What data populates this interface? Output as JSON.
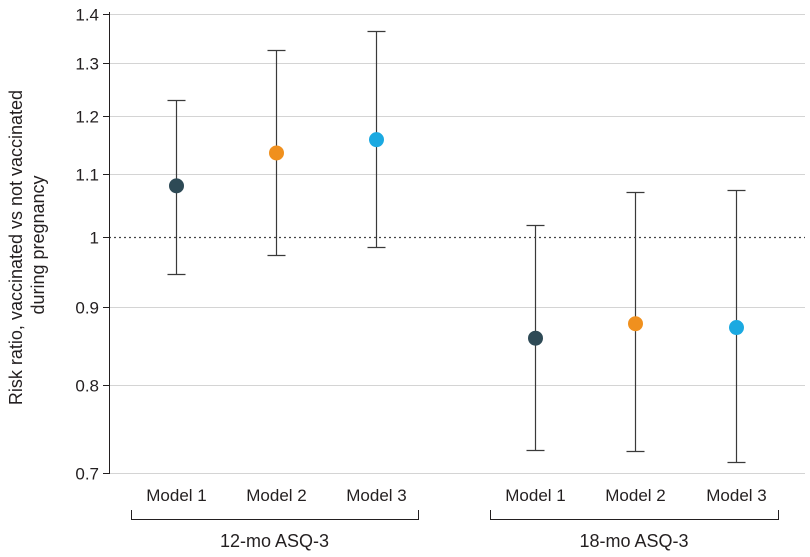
{
  "chart_data": {
    "type": "scatter",
    "subtype": "forest-plot-log-scale",
    "ylabel_lines": [
      "Risk ratio, vaccinated vs not vaccinated",
      "during pregnancy"
    ],
    "y_scale": "log",
    "ylim": [
      0.7,
      1.4
    ],
    "y_ticks": [
      {
        "value": 0.7,
        "label": "0.7"
      },
      {
        "value": 0.8,
        "label": "0.8"
      },
      {
        "value": 0.9,
        "label": "0.9"
      },
      {
        "value": 1.0,
        "label": "1"
      },
      {
        "value": 1.1,
        "label": "1.1"
      },
      {
        "value": 1.2,
        "label": "1.2"
      },
      {
        "value": 1.3,
        "label": "1.3"
      },
      {
        "value": 1.4,
        "label": "1.4"
      }
    ],
    "reference_line": 1.0,
    "grid": true,
    "model_colors": {
      "Model 1": "#2e4a56",
      "Model 2": "#f0901e",
      "Model 3": "#1ba9e1"
    },
    "groups": [
      {
        "label": "12-mo ASQ-3",
        "points": [
          {
            "model": "Model 1",
            "rr": 1.08,
            "lower": 0.945,
            "upper": 1.23
          },
          {
            "model": "Model 2",
            "rr": 1.135,
            "lower": 0.973,
            "upper": 1.325
          },
          {
            "model": "Model 3",
            "rr": 1.158,
            "lower": 0.984,
            "upper": 1.365
          }
        ]
      },
      {
        "label": "18-mo ASQ-3",
        "points": [
          {
            "model": "Model 1",
            "rr": 0.858,
            "lower": 0.725,
            "upper": 1.018
          },
          {
            "model": "Model 2",
            "rr": 0.877,
            "lower": 0.724,
            "upper": 1.07
          },
          {
            "model": "Model 3",
            "rr": 0.872,
            "lower": 0.712,
            "upper": 1.074
          }
        ]
      }
    ]
  }
}
